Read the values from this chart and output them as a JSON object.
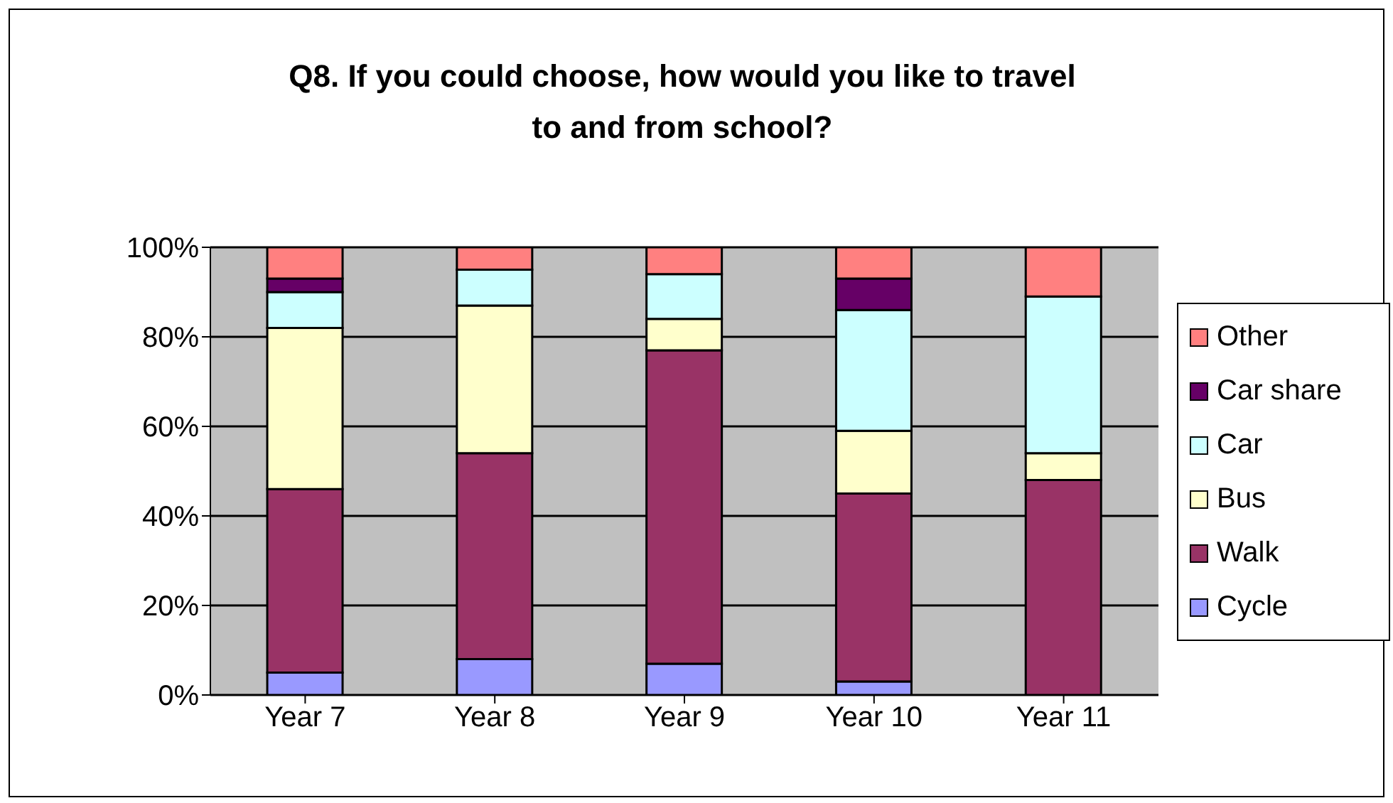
{
  "chart_data": {
    "type": "bar",
    "title": "Q8. If you could choose, how would you like to travel to and from school?",
    "categories": [
      "Year 7",
      "Year 8",
      "Year 9",
      "Year 10",
      "Year 11"
    ],
    "stacked": true,
    "series": [
      {
        "name": "Cycle",
        "color": "#9999ff",
        "values": [
          5,
          8,
          7,
          3,
          0
        ]
      },
      {
        "name": "Walk",
        "color": "#993366",
        "values": [
          41,
          46,
          70,
          42,
          48
        ]
      },
      {
        "name": "Bus",
        "color": "#ffffcc",
        "values": [
          36,
          33,
          7,
          14,
          6
        ]
      },
      {
        "name": "Car",
        "color": "#ccffff",
        "values": [
          8,
          8,
          10,
          27,
          35
        ]
      },
      {
        "name": "Car share",
        "color": "#660066",
        "values": [
          3,
          0,
          0,
          7,
          0
        ]
      },
      {
        "name": "Other",
        "color": "#ff8080",
        "values": [
          7,
          5,
          6,
          7,
          11
        ]
      }
    ],
    "ylim": [
      0,
      100
    ],
    "yticks": [
      {
        "value": 0,
        "label": "0%"
      },
      {
        "value": 20,
        "label": "20%"
      },
      {
        "value": 40,
        "label": "40%"
      },
      {
        "value": 60,
        "label": "60%"
      },
      {
        "value": 80,
        "label": "80%"
      },
      {
        "value": 100,
        "label": "100%"
      }
    ],
    "grid": "y",
    "legend": "right"
  }
}
